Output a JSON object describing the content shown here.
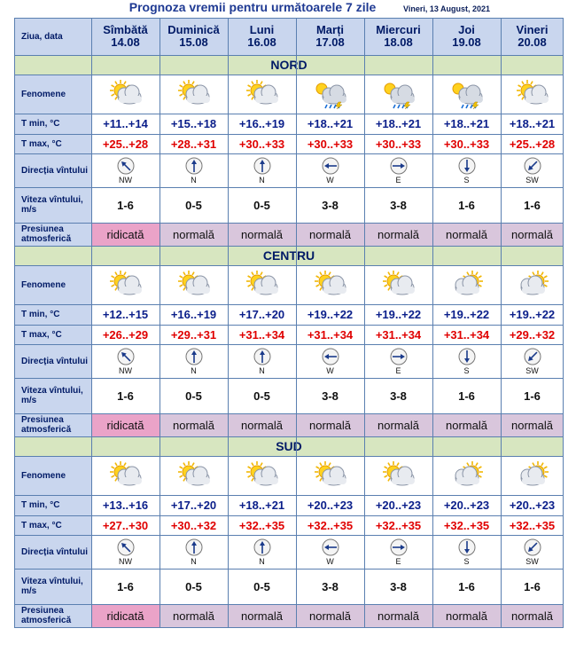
{
  "title": "Prognoza vremii pentru următoarele 7 zile",
  "issue_date": "Vineri, 13 August, 2021",
  "header_label": "Ziua, data",
  "days": [
    {
      "name": "Sîmbătă",
      "date": "14.08"
    },
    {
      "name": "Duminică",
      "date": "15.08"
    },
    {
      "name": "Luni",
      "date": "16.08"
    },
    {
      "name": "Marți",
      "date": "17.08"
    },
    {
      "name": "Miercuri",
      "date": "18.08"
    },
    {
      "name": "Joi",
      "date": "19.08"
    },
    {
      "name": "Vineri",
      "date": "20.08"
    }
  ],
  "row_labels": {
    "phenomena": "Fenomene",
    "tmin": "T min, °C",
    "tmax": "T max, °C",
    "wind_dir": "Direcția vîntului",
    "wind_speed": "Viteza vîntului, m/s",
    "pressure": "Presiunea atmosferică"
  },
  "colors": {
    "header_bg": "#c9d6ee",
    "region_bg": "#d7e6c0",
    "tmin": "#0a1e8a",
    "tmax": "#e00000",
    "pressure_bg": "#d9c6dc",
    "pressure_high_bg": "#eaa3c8"
  },
  "regions": [
    {
      "name": "NORD",
      "icons": [
        "partly-cloudy-sun-icon",
        "partly-cloudy-sun-icon",
        "partly-cloudy-sun-icon",
        "storm-cloud-rain-icon",
        "storm-cloud-rain-icon",
        "storm-cloud-rain-icon",
        "partly-cloudy-sun-icon"
      ],
      "tmin": [
        "+11..+14",
        "+15..+18",
        "+16..+19",
        "+18..+21",
        "+18..+21",
        "+18..+21",
        "+18..+21"
      ],
      "tmax": [
        "+25..+28",
        "+28..+31",
        "+30..+33",
        "+30..+33",
        "+30..+33",
        "+30..+33",
        "+25..+28"
      ],
      "wind_dir": [
        "NW",
        "N",
        "N",
        "W",
        "E",
        "S",
        "SW"
      ],
      "wind_speed": [
        "1-6",
        "0-5",
        "0-5",
        "3-8",
        "3-8",
        "1-6",
        "1-6"
      ],
      "pressure": [
        "ridicată",
        "normală",
        "normală",
        "normală",
        "normală",
        "normală",
        "normală"
      ]
    },
    {
      "name": "CENTRU",
      "icons": [
        "partly-cloudy-sun-icon",
        "partly-cloudy-sun-icon",
        "partly-cloudy-sun-icon",
        "partly-cloudy-sun-icon",
        "partly-cloudy-sun-icon",
        "sun-cloudy-icon",
        "sun-cloudy-icon"
      ],
      "tmin": [
        "+12..+15",
        "+16..+19",
        "+17..+20",
        "+19..+22",
        "+19..+22",
        "+19..+22",
        "+19..+22"
      ],
      "tmax": [
        "+26..+29",
        "+29..+31",
        "+31..+34",
        "+31..+34",
        "+31..+34",
        "+31..+34",
        "+29..+32"
      ],
      "wind_dir": [
        "NW",
        "N",
        "N",
        "W",
        "E",
        "S",
        "SW"
      ],
      "wind_speed": [
        "1-6",
        "0-5",
        "0-5",
        "3-8",
        "3-8",
        "1-6",
        "1-6"
      ],
      "pressure": [
        "ridicată",
        "normală",
        "normală",
        "normală",
        "normală",
        "normală",
        "normală"
      ]
    },
    {
      "name": "SUD",
      "icons": [
        "partly-cloudy-sun-icon",
        "partly-cloudy-sun-icon",
        "partly-cloudy-sun-icon",
        "partly-cloudy-sun-icon",
        "partly-cloudy-sun-icon",
        "sun-cloudy-icon",
        "sun-cloudy-icon"
      ],
      "tmin": [
        "+13..+16",
        "+17..+20",
        "+18..+21",
        "+20..+23",
        "+20..+23",
        "+20..+23",
        "+20..+23"
      ],
      "tmax": [
        "+27..+30",
        "+30..+32",
        "+32..+35",
        "+32..+35",
        "+32..+35",
        "+32..+35",
        "+32..+35"
      ],
      "wind_dir": [
        "NW",
        "N",
        "N",
        "W",
        "E",
        "S",
        "SW"
      ],
      "wind_speed": [
        "1-6",
        "0-5",
        "0-5",
        "3-8",
        "3-8",
        "1-6",
        "1-6"
      ],
      "pressure": [
        "ridicată",
        "normală",
        "normală",
        "normală",
        "normală",
        "normală",
        "normală"
      ]
    }
  ]
}
